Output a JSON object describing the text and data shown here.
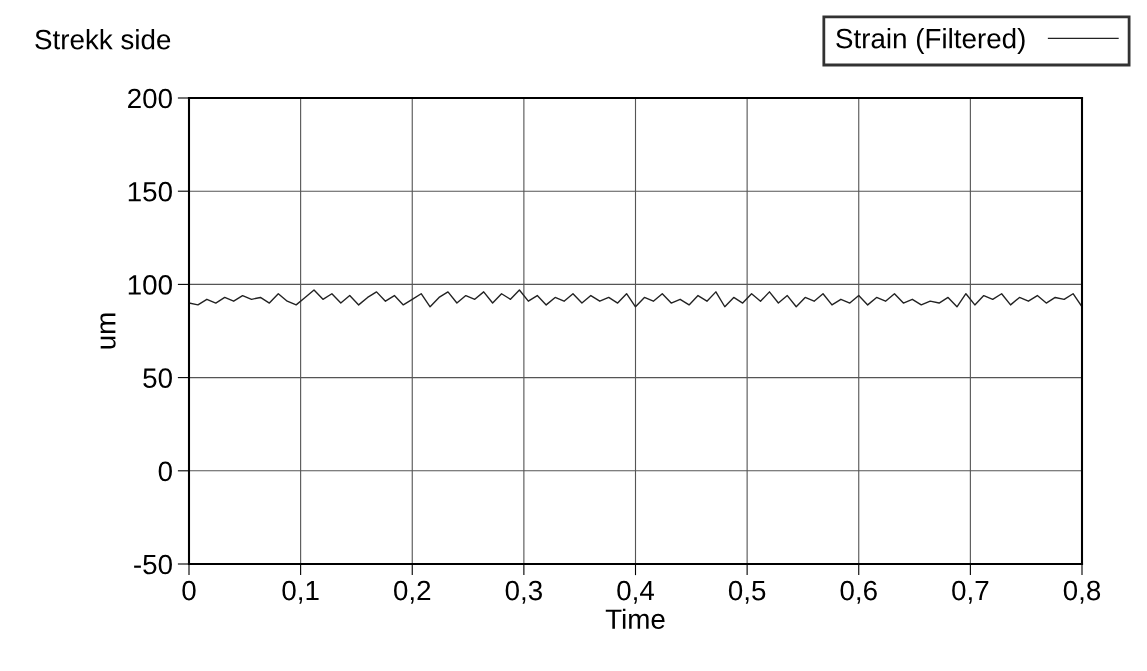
{
  "chart_data": {
    "type": "line",
    "title": "Strekk side",
    "xlabel": "Time",
    "ylabel": "um",
    "x": [
      0,
      0.008,
      0.016,
      0.024,
      0.032,
      0.04,
      0.048,
      0.056,
      0.064,
      0.072,
      0.08,
      0.088,
      0.096,
      0.104,
      0.112,
      0.12,
      0.128,
      0.136,
      0.144,
      0.152,
      0.16,
      0.168,
      0.176,
      0.184,
      0.192,
      0.2,
      0.208,
      0.216,
      0.224,
      0.232,
      0.24,
      0.248,
      0.256,
      0.264,
      0.272,
      0.28,
      0.288,
      0.296,
      0.304,
      0.312,
      0.32,
      0.328,
      0.336,
      0.344,
      0.352,
      0.36,
      0.368,
      0.376,
      0.384,
      0.392,
      0.4,
      0.408,
      0.416,
      0.424,
      0.432,
      0.44,
      0.448,
      0.456,
      0.464,
      0.472,
      0.48,
      0.488,
      0.496,
      0.504,
      0.512,
      0.52,
      0.528,
      0.536,
      0.544,
      0.552,
      0.56,
      0.568,
      0.576,
      0.584,
      0.592,
      0.6,
      0.608,
      0.616,
      0.624,
      0.632,
      0.64,
      0.648,
      0.656,
      0.664,
      0.672,
      0.68,
      0.688,
      0.696,
      0.704,
      0.712,
      0.72,
      0.728,
      0.736,
      0.744,
      0.752,
      0.76,
      0.768,
      0.776,
      0.784,
      0.792,
      0.8
    ],
    "series": [
      {
        "name": "Strain (Filtered)",
        "color": "#222222",
        "values": [
          90,
          89,
          92,
          90,
          93,
          91,
          94,
          92,
          93,
          90,
          95,
          91,
          89,
          93,
          97,
          92,
          95,
          90,
          94,
          89,
          93,
          96,
          91,
          94,
          89,
          92,
          95,
          88,
          93,
          96,
          90,
          94,
          92,
          96,
          90,
          95,
          92,
          97,
          91,
          94,
          89,
          93,
          91,
          95,
          90,
          94,
          91,
          93,
          90,
          95,
          88,
          93,
          91,
          95,
          90,
          92,
          89,
          94,
          91,
          96,
          88,
          93,
          90,
          95,
          91,
          96,
          90,
          94,
          88,
          93,
          91,
          95,
          89,
          92,
          90,
          94,
          89,
          93,
          91,
          95,
          90,
          92,
          89,
          91,
          90,
          93,
          88,
          95,
          89,
          94,
          92,
          95,
          89,
          93,
          91,
          94,
          90,
          93,
          92,
          95,
          88
        ]
      }
    ],
    "xlim": [
      0,
      0.8
    ],
    "ylim": [
      -50,
      200
    ],
    "xticks": [
      0,
      {
        "value": 0.1,
        "label": "0,1"
      },
      {
        "value": 0.2,
        "label": "0,2"
      },
      {
        "value": 0.3,
        "label": "0,3"
      },
      {
        "value": 0.4,
        "label": "0,4"
      },
      {
        "value": 0.5,
        "label": "0,5"
      },
      {
        "value": 0.6,
        "label": "0,6"
      },
      {
        "value": 0.7,
        "label": "0,7"
      },
      {
        "value": 0.8,
        "label": "0,8"
      }
    ],
    "yticks": [
      -50,
      0,
      50,
      100,
      150,
      200
    ],
    "grid": true,
    "legend": "top right",
    "line_style": "solid",
    "marker": "none"
  }
}
